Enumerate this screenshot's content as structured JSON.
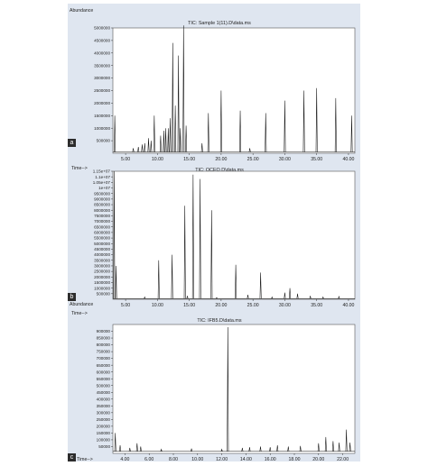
{
  "panels": [
    {
      "letter": "a",
      "ytitle": "Abundance",
      "xtitle": "Time-->",
      "chart_data": {
        "type": "line",
        "title": "TIC: Sample 1(11).D\\data.ms",
        "ylabel": "Abundance",
        "xlabel": "Time-->",
        "ylim": [
          0,
          5000000
        ],
        "xlim": [
          3.0,
          41.0
        ],
        "yticks": [
          500000,
          1000000,
          1500000,
          2000000,
          2500000,
          3000000,
          3500000,
          4000000,
          4500000,
          5000000
        ],
        "yticklabels": [
          "500000",
          "1000000",
          "1500000",
          "2000000",
          "2500000",
          "3000000",
          "3500000",
          "4000000",
          "4500000",
          "5000000"
        ],
        "xticks": [
          5,
          10,
          15,
          20,
          25,
          30,
          35,
          40
        ],
        "xticklabels": [
          "5.00",
          "10.00",
          "15.00",
          "20.00",
          "25.00",
          "30.00",
          "35.00",
          "40.00"
        ],
        "baseline": 50000,
        "peaks": [
          {
            "x": 3.3,
            "y": 1500000
          },
          {
            "x": 6.2,
            "y": 200000
          },
          {
            "x": 7.0,
            "y": 250000
          },
          {
            "x": 7.6,
            "y": 350000
          },
          {
            "x": 8.0,
            "y": 400000
          },
          {
            "x": 8.6,
            "y": 600000
          },
          {
            "x": 9.0,
            "y": 500000
          },
          {
            "x": 9.5,
            "y": 1500000
          },
          {
            "x": 10.5,
            "y": 700000
          },
          {
            "x": 11.0,
            "y": 900000
          },
          {
            "x": 11.3,
            "y": 1000000
          },
          {
            "x": 11.7,
            "y": 1000000
          },
          {
            "x": 12.0,
            "y": 1400000
          },
          {
            "x": 12.4,
            "y": 4400000
          },
          {
            "x": 12.8,
            "y": 1900000
          },
          {
            "x": 13.3,
            "y": 3900000
          },
          {
            "x": 13.6,
            "y": 1000000
          },
          {
            "x": 14.1,
            "y": 5100000
          },
          {
            "x": 14.5,
            "y": 1100000
          },
          {
            "x": 17.0,
            "y": 400000
          },
          {
            "x": 18.0,
            "y": 1600000
          },
          {
            "x": 20.0,
            "y": 2500000
          },
          {
            "x": 23.0,
            "y": 1700000
          },
          {
            "x": 24.5,
            "y": 200000
          },
          {
            "x": 27.0,
            "y": 1600000
          },
          {
            "x": 30.0,
            "y": 2100000
          },
          {
            "x": 33.0,
            "y": 2500000
          },
          {
            "x": 35.0,
            "y": 2600000
          },
          {
            "x": 38.0,
            "y": 2200000
          },
          {
            "x": 40.5,
            "y": 1500000
          }
        ]
      }
    },
    {
      "letter": "b",
      "ytitle": "Abundance",
      "xtitle": "Time-->",
      "chart_data": {
        "type": "line",
        "title": "TIC: OCEO.D\\data.ms",
        "ylabel": "Abundance",
        "xlabel": "Time-->",
        "ylim": [
          0,
          11500000
        ],
        "xlim": [
          3.0,
          41.0
        ],
        "yticks": [
          500000,
          1000000,
          1500000,
          2000000,
          2500000,
          3000000,
          3500000,
          4000000,
          4500000,
          5000000,
          5500000,
          6000000,
          6500000,
          7000000,
          7500000,
          8000000,
          8500000,
          9000000,
          9500000,
          10000000,
          10500000,
          11000000,
          11500000
        ],
        "yticklabels": [
          "500000",
          "1000000",
          "1500000",
          "2000000",
          "2500000",
          "3000000",
          "3500000",
          "4000000",
          "4500000",
          "5000000",
          "5500000",
          "6000000",
          "6500000",
          "7000000",
          "7500000",
          "8000000",
          "8500000",
          "9000000",
          "9500000",
          "1e+07",
          "1.05e+07",
          "1.1e+07",
          "1.15e+07"
        ],
        "xticks": [
          5,
          10,
          15,
          20,
          25,
          30,
          35,
          40
        ],
        "xticklabels": [
          "5.00",
          "10.00",
          "15.00",
          "20.00",
          "25.00",
          "30.00",
          "35.00",
          "40.00"
        ],
        "baseline": 60000,
        "peaks": [
          {
            "x": 3.2,
            "y": 11500000
          },
          {
            "x": 3.5,
            "y": 3000000
          },
          {
            "x": 8.0,
            "y": 200000
          },
          {
            "x": 10.2,
            "y": 3500000
          },
          {
            "x": 12.3,
            "y": 4000000
          },
          {
            "x": 14.3,
            "y": 8400000
          },
          {
            "x": 14.7,
            "y": 300000
          },
          {
            "x": 15.6,
            "y": 11200000
          },
          {
            "x": 16.7,
            "y": 10800000
          },
          {
            "x": 18.5,
            "y": 8000000
          },
          {
            "x": 19.3,
            "y": 150000
          },
          {
            "x": 22.3,
            "y": 3100000
          },
          {
            "x": 24.2,
            "y": 400000
          },
          {
            "x": 26.2,
            "y": 2400000
          },
          {
            "x": 28.0,
            "y": 200000
          },
          {
            "x": 30.0,
            "y": 600000
          },
          {
            "x": 30.8,
            "y": 1000000
          },
          {
            "x": 32.0,
            "y": 500000
          },
          {
            "x": 34.0,
            "y": 300000
          },
          {
            "x": 36.0,
            "y": 200000
          },
          {
            "x": 38.5,
            "y": 250000
          }
        ]
      }
    },
    {
      "letter": "c",
      "ytitle": "Abundance",
      "xtitle": "Time-->",
      "chart_data": {
        "type": "line",
        "title": "TIC: IFB5.D\\data.ms",
        "ylabel": "Abundance",
        "xlabel": "Time-->",
        "ylim": [
          0,
          950000
        ],
        "xlim": [
          3.0,
          23.0
        ],
        "yticks": [
          50000,
          100000,
          150000,
          200000,
          250000,
          300000,
          350000,
          400000,
          450000,
          500000,
          550000,
          600000,
          650000,
          700000,
          750000,
          800000,
          850000,
          900000
        ],
        "yticklabels": [
          "50000",
          "100000",
          "150000",
          "200000",
          "250000",
          "300000",
          "350000",
          "400000",
          "450000",
          "500000",
          "550000",
          "600000",
          "650000",
          "700000",
          "750000",
          "800000",
          "850000",
          "900000"
        ],
        "xticks": [
          4,
          6,
          8,
          10,
          12,
          14,
          16,
          18,
          20,
          22
        ],
        "xticklabels": [
          "4.00",
          "6.00",
          "8.00",
          "10.00",
          "12.00",
          "14.00",
          "16.00",
          "18.00",
          "20.00",
          "22.00"
        ],
        "baseline": 15000,
        "peaks": [
          {
            "x": 3.2,
            "y": 150000
          },
          {
            "x": 3.6,
            "y": 60000
          },
          {
            "x": 4.4,
            "y": 40000
          },
          {
            "x": 5.0,
            "y": 75000
          },
          {
            "x": 5.3,
            "y": 50000
          },
          {
            "x": 7.0,
            "y": 30000
          },
          {
            "x": 9.5,
            "y": 35000
          },
          {
            "x": 12.0,
            "y": 30000
          },
          {
            "x": 12.5,
            "y": 930000
          },
          {
            "x": 13.7,
            "y": 40000
          },
          {
            "x": 14.3,
            "y": 45000
          },
          {
            "x": 15.2,
            "y": 50000
          },
          {
            "x": 16.0,
            "y": 45000
          },
          {
            "x": 16.6,
            "y": 60000
          },
          {
            "x": 17.5,
            "y": 50000
          },
          {
            "x": 18.5,
            "y": 55000
          },
          {
            "x": 20.0,
            "y": 75000
          },
          {
            "x": 20.6,
            "y": 120000
          },
          {
            "x": 21.2,
            "y": 90000
          },
          {
            "x": 21.7,
            "y": 80000
          },
          {
            "x": 22.3,
            "y": 175000
          },
          {
            "x": 22.6,
            "y": 80000
          }
        ]
      }
    }
  ]
}
